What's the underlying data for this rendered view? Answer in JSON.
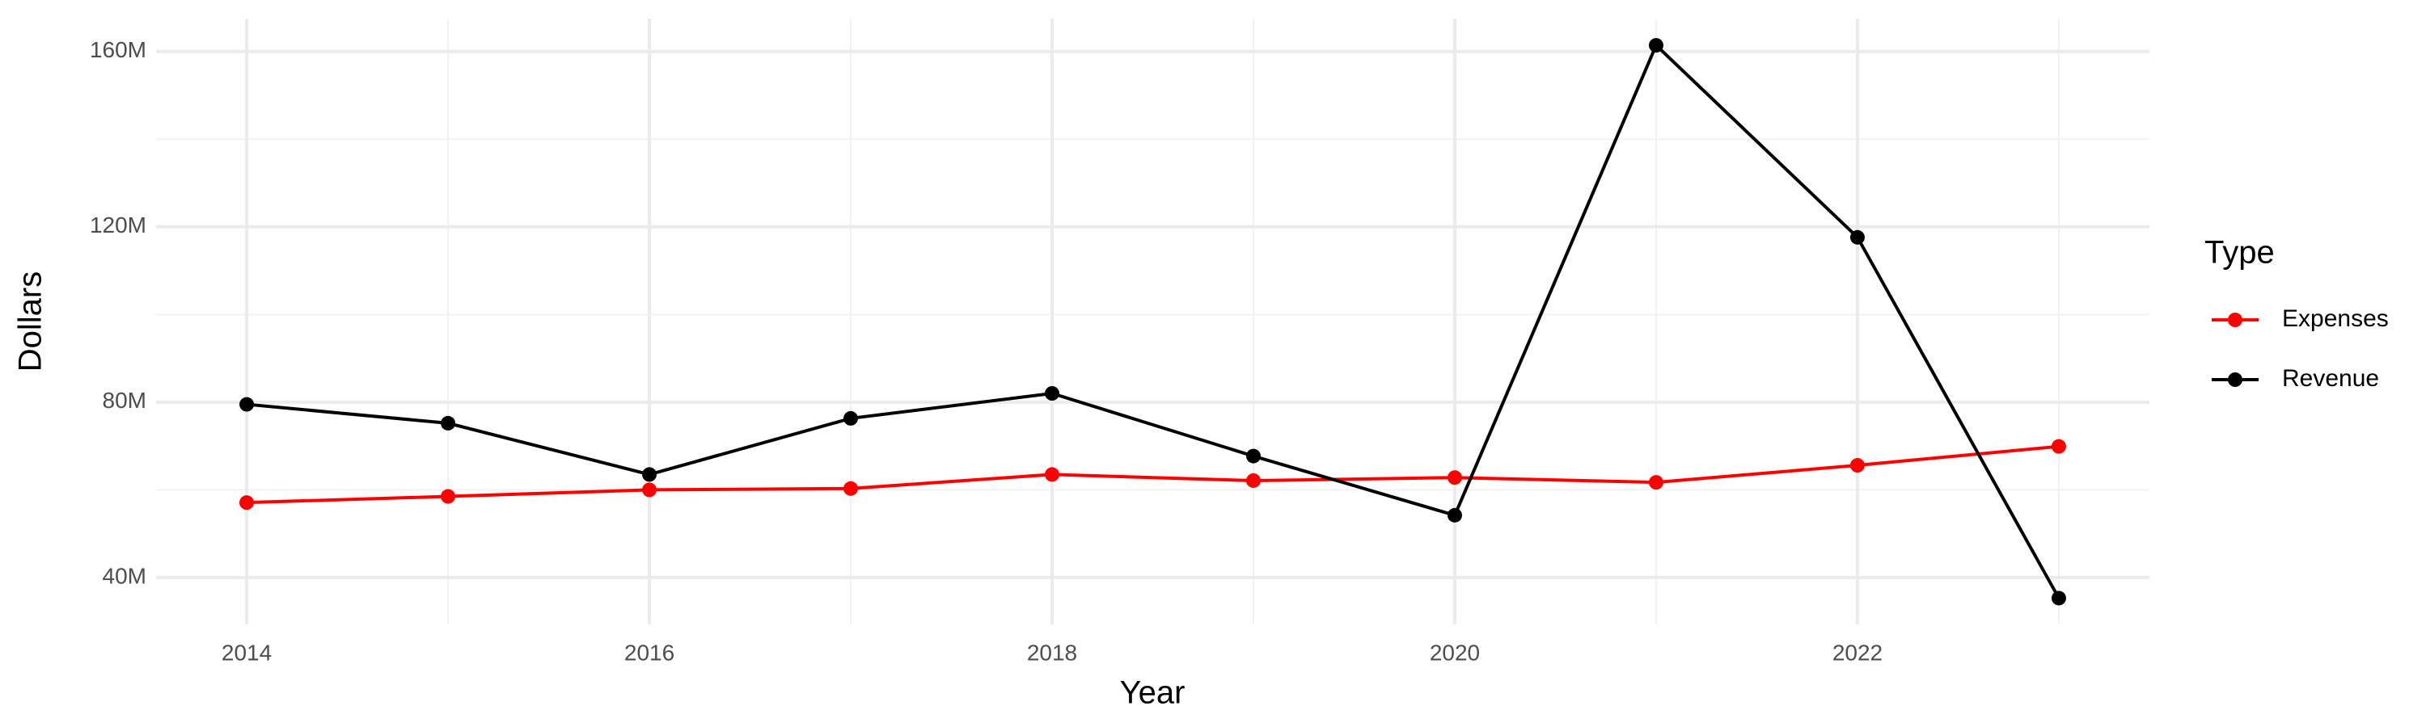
{
  "chart_data": {
    "type": "line",
    "x_label": "Year",
    "y_label": "Dollars",
    "legend_title": "Type",
    "x": [
      2014,
      2015,
      2016,
      2017,
      2018,
      2019,
      2020,
      2021,
      2022,
      2023
    ],
    "series": [
      {
        "name": "Expenses",
        "color": "#ff0000",
        "values": [
          57100000,
          58500000,
          60000000,
          60300000,
          63500000,
          62100000,
          62800000,
          61700000,
          65600000,
          69900000
        ]
      },
      {
        "name": "Revenue",
        "color": "#000000",
        "values": [
          79500000,
          75200000,
          63500000,
          76300000,
          82000000,
          67700000,
          54200000,
          161400000,
          117600000,
          35300000
        ]
      }
    ],
    "xlim": [
      2013.55,
      2023.45
    ],
    "xticks": [
      2014,
      2016,
      2018,
      2020,
      2022
    ],
    "ylim": [
      29300000,
      167500000
    ],
    "yticks": [
      {
        "value": 40000000,
        "label": "40M"
      },
      {
        "value": 80000000,
        "label": "80M"
      },
      {
        "value": 120000000,
        "label": "120M"
      },
      {
        "value": 160000000,
        "label": "160M"
      }
    ],
    "grid": true,
    "legend": "right"
  }
}
